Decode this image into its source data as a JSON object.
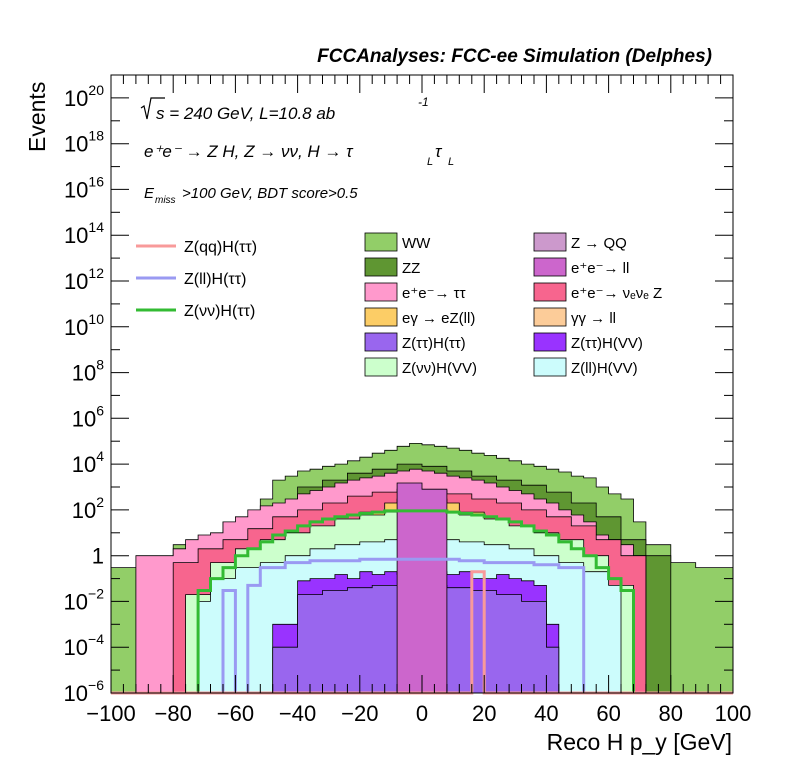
{
  "chart_data": {
    "type": "histogram-stacked",
    "title": "FCCAnalyses: FCC-ee Simulation (Delphes)",
    "xlabel": "Reco H p_y [GeV]",
    "ylabel": "Events",
    "xlim": [
      -100,
      100
    ],
    "ylim": [
      1e-06,
      1e+21
    ],
    "log_y": true,
    "x_ticks": [
      "−100",
      "−80",
      "−60",
      "−40",
      "−20",
      "0",
      "20",
      "40",
      "60",
      "80",
      "100"
    ],
    "y_ticks": [
      {
        "mant": "10",
        "exp": "−6",
        "value": 1e-06
      },
      {
        "mant": "10",
        "exp": "−4",
        "value": 0.0001
      },
      {
        "mant": "10",
        "exp": "−2",
        "value": 0.01
      },
      {
        "mant": "1",
        "exp": "",
        "value": 1
      },
      {
        "mant": "10",
        "exp": "2",
        "value": 100.0
      },
      {
        "mant": "10",
        "exp": "4",
        "value": 10000.0
      },
      {
        "mant": "10",
        "exp": "6",
        "value": 1000000.0
      },
      {
        "mant": "10",
        "exp": "8",
        "value": 100000000.0
      },
      {
        "mant": "10",
        "exp": "10",
        "value": 10000000000.0
      },
      {
        "mant": "10",
        "exp": "12",
        "value": 1000000000000.0
      },
      {
        "mant": "10",
        "exp": "14",
        "value": 100000000000000.0
      },
      {
        "mant": "10",
        "exp": "16",
        "value": 1e+16
      },
      {
        "mant": "10",
        "exp": "18",
        "value": 1e+18
      },
      {
        "mant": "10",
        "exp": "20",
        "value": 1e+20
      }
    ],
    "annotations": {
      "energy": "s = 240 GeV, L=10.8 ab",
      "energy_exp": "-1",
      "process": "e⁺e⁻ → Z H, Z → νν, H → τ",
      "sub_L": "L",
      "tau2": "τ",
      "cut_E": "E",
      "cut_sub": "miss",
      "cut_rest": ">100 GeV, BDT score>0.5"
    },
    "signal_legend": [
      {
        "name": "Z(qq)H(ττ)",
        "color": "#f89a9a"
      },
      {
        "name": "Z(ll)H(ττ)",
        "color": "#9a9af2"
      },
      {
        "name": "Z(νν)H(ττ)",
        "color": "#33bb33"
      }
    ],
    "background_legend": [
      {
        "name": "WW",
        "color": "#92ce68"
      },
      {
        "name": "Z → QQ",
        "color": "#cc99cc"
      },
      {
        "name": "ZZ",
        "color": "#5f9632"
      },
      {
        "name": "e⁺e⁻→ ll",
        "color": "#cc66cc"
      },
      {
        "name": "e⁺e⁻→ ττ",
        "color": "#ff99cc"
      },
      {
        "name": "e⁺e⁻→ νₑνₑ Z",
        "color": "#f7658e"
      },
      {
        "name": "eγ → eZ(ll)",
        "color": "#fccd66"
      },
      {
        "name": "γγ → ll",
        "color": "#fccc99"
      },
      {
        "name": "Z(ττ)H(ττ)",
        "color": "#9966ee"
      },
      {
        "name": "Z(ττ)H(VV)",
        "color": "#9933ff"
      },
      {
        "name": "Z(νν)H(VV)",
        "color": "#ccffcc"
      },
      {
        "name": "Z(ll)H(VV)",
        "color": "#ccfcfc"
      }
    ],
    "bin_width": 4,
    "stack": {
      "x_lo": -100,
      "layers": [
        {
          "name": "WW",
          "color": "#92ce68",
          "lo": [
            -100,
            -88,
            -80,
            -64,
            -52,
            -48,
            -44,
            -40,
            -36,
            -32,
            -28,
            -24,
            -20,
            -16,
            -12,
            -8,
            -4,
            0,
            4,
            8,
            12,
            16,
            20,
            24,
            28,
            32,
            36,
            40,
            44,
            48,
            52,
            56,
            60,
            64,
            68,
            72,
            80,
            88,
            100
          ],
          "v": [
            0.3,
            0.5,
            3,
            30,
            300,
            2000,
            3000,
            5000,
            6000,
            8000,
            10000,
            14000,
            20000,
            30000,
            40000,
            60000,
            80000,
            70000,
            60000,
            50000,
            40000,
            30000,
            24000,
            18000,
            14000,
            10000,
            8000,
            6000,
            4500,
            3000,
            2500,
            1000,
            500,
            300,
            30,
            3,
            0.5,
            0.3
          ]
        },
        {
          "name": "ZZ",
          "color": "#5f9632",
          "lo": [
            -100,
            -92,
            -80,
            -68,
            -56,
            -48,
            -40,
            -32,
            -24,
            -16,
            -8,
            0,
            8,
            16,
            24,
            32,
            40,
            48,
            56,
            64,
            72,
            80,
            100
          ],
          "v": [
            1e-06,
            3e-06,
            1e-06,
            1,
            10,
            100,
            1000,
            2000,
            4000,
            6000,
            10000,
            8000,
            5000,
            3000,
            2000,
            1200,
            600,
            200,
            50,
            5,
            1,
            1e-06
          ]
        },
        {
          "name": "e⁺e⁻→ ττ",
          "color": "#ff99cc",
          "lo": [
            -100,
            -92,
            -80,
            -76,
            -72,
            -68,
            -64,
            -60,
            -56,
            -52,
            -48,
            -44,
            -40,
            -36,
            -32,
            -28,
            -24,
            -20,
            -16,
            -12,
            -8,
            -4,
            0,
            4,
            8,
            12,
            16,
            20,
            24,
            28,
            32,
            36,
            40,
            44,
            48,
            52,
            56,
            60,
            64,
            68,
            72,
            100
          ],
          "v": [
            1e-06,
            1,
            2,
            5,
            8,
            10,
            30,
            50,
            100,
            150,
            200,
            300,
            500,
            700,
            1000,
            1500,
            2000,
            2500,
            3000,
            4000,
            5000,
            6000,
            5000,
            4000,
            3000,
            2500,
            2000,
            1500,
            1000,
            700,
            500,
            300,
            200,
            100,
            60,
            30,
            8,
            5,
            3,
            1,
            1e-06
          ]
        },
        {
          "name": "e⁺e⁻→ νₑνₑ Z",
          "color": "#f7658e",
          "lo": [
            -100,
            -80,
            -72,
            -64,
            -56,
            -48,
            -40,
            -32,
            -24,
            -16,
            -8,
            0,
            8,
            16,
            24,
            32,
            40,
            48,
            56,
            64,
            72,
            100
          ],
          "v": [
            1e-06,
            0.5,
            2,
            5,
            15,
            50,
            100,
            200,
            400,
            600,
            800,
            700,
            500,
            300,
            200,
            100,
            50,
            20,
            5,
            1,
            1e-06
          ]
        },
        {
          "name": "eγ → eZ(ll)",
          "color": "#fccd66",
          "lo": [
            -100,
            -20,
            -12,
            -8,
            -4,
            4,
            8,
            12,
            20,
            100
          ],
          "v": [
            1e-06,
            80,
            200,
            300,
            500,
            300,
            200,
            80,
            1e-06
          ]
        },
        {
          "name": "Z(νν)H(VV)",
          "color": "#ccffcc",
          "lo": [
            -100,
            -76,
            -68,
            -60,
            -52,
            -44,
            -36,
            -28,
            -20,
            -12,
            -4,
            4,
            12,
            20,
            28,
            36,
            44,
            52,
            60,
            68,
            100
          ],
          "v": [
            1e-06,
            0.02,
            0.5,
            2,
            5,
            10,
            20,
            40,
            60,
            80,
            90,
            80,
            60,
            40,
            20,
            10,
            5,
            1,
            0.05,
            1e-06
          ]
        },
        {
          "name": "Z(ll)H(VV)",
          "color": "#ccfcfc",
          "lo": [
            -100,
            -72,
            -68,
            -60,
            -52,
            -44,
            -36,
            -28,
            -20,
            -12,
            -4,
            4,
            12,
            20,
            28,
            36,
            44,
            52,
            60,
            64,
            100
          ],
          "v": [
            1e-06,
            0.01,
            0.1,
            0.3,
            0.5,
            1,
            2,
            3,
            4,
            5,
            6,
            5,
            4,
            3,
            2,
            1,
            0.5,
            0.2,
            0.05,
            1e-06
          ]
        },
        {
          "name": "Z(ττ)H(VV)",
          "color": "#9933ff",
          "lo": [
            -100,
            -48,
            -40,
            -36,
            -32,
            -28,
            -24,
            -20,
            -16,
            -12,
            -8,
            0,
            4,
            8,
            12,
            16,
            20,
            24,
            28,
            32,
            36,
            40,
            44,
            100
          ],
          "v": [
            1e-06,
            0.001,
            0.08,
            0.1,
            0.1,
            0.15,
            0.1,
            0.2,
            0.15,
            0.2,
            0.15,
            0.15,
            0.2,
            0.15,
            0.2,
            0.1,
            0.1,
            0.15,
            0.1,
            0.08,
            0.05,
            0.001,
            1e-06
          ]
        },
        {
          "name": "Z(ττ)H(ττ)",
          "color": "#9966ee",
          "lo": [
            -100,
            -48,
            -40,
            -32,
            -24,
            -16,
            -8,
            0,
            8,
            16,
            24,
            32,
            40,
            44,
            100
          ],
          "v": [
            1e-06,
            0.0001,
            0.02,
            0.03,
            0.04,
            0.05,
            0.05,
            0.05,
            0.04,
            0.03,
            0.02,
            0.01,
            0.0001,
            1e-06
          ]
        },
        {
          "name": "Z → QQ",
          "color": "#cc99cc",
          "lo": [
            -100,
            -4,
            4,
            100
          ],
          "v": [
            1e-06,
            300,
            1e-06
          ]
        },
        {
          "name": "e⁺e⁻→ ll",
          "color": "#cc66cc",
          "lo": [
            -100,
            -8,
            0,
            8,
            100
          ],
          "v": [
            1e-06,
            1500,
            800,
            1e-06
          ]
        }
      ]
    },
    "signal_curves": [
      {
        "name": "Z(νν)H(ττ)",
        "color": "#33bb33",
        "lo": [
          -100,
          -72,
          -68,
          -64,
          -60,
          -56,
          -52,
          -48,
          -44,
          -40,
          -36,
          -32,
          -28,
          -24,
          -20,
          -16,
          -12,
          -8,
          -4,
          0,
          4,
          8,
          12,
          16,
          20,
          24,
          28,
          32,
          36,
          40,
          44,
          48,
          52,
          56,
          60,
          64,
          68,
          100
        ],
        "v": [
          1e-06,
          0.03,
          0.1,
          0.3,
          1,
          2,
          4,
          8,
          12,
          20,
          30,
          40,
          50,
          60,
          70,
          80,
          90,
          90,
          90,
          90,
          90,
          80,
          70,
          60,
          50,
          40,
          30,
          20,
          12,
          8,
          4,
          2,
          1,
          0.3,
          0.1,
          0.03,
          1e-06
        ]
      },
      {
        "name": "Z(ll)H(ττ)",
        "color": "#9a9af2",
        "lo": [
          -100,
          -64,
          -60,
          -56,
          -52,
          -44,
          -36,
          -28,
          -20,
          -12,
          -4,
          4,
          12,
          20,
          28,
          36,
          44,
          52,
          100
        ],
        "v": [
          1e-06,
          0.03,
          1e-06,
          0.05,
          0.3,
          0.5,
          0.6,
          0.6,
          0.7,
          0.7,
          0.7,
          0.7,
          0.6,
          0.5,
          0.5,
          0.4,
          0.3,
          1e-06
        ]
      },
      {
        "name": "Z(qq)H(ττ)",
        "color": "#f89a9a",
        "lo": [
          -100,
          16,
          20,
          100
        ],
        "v": [
          1e-06,
          0.2,
          1e-06
        ]
      }
    ]
  }
}
